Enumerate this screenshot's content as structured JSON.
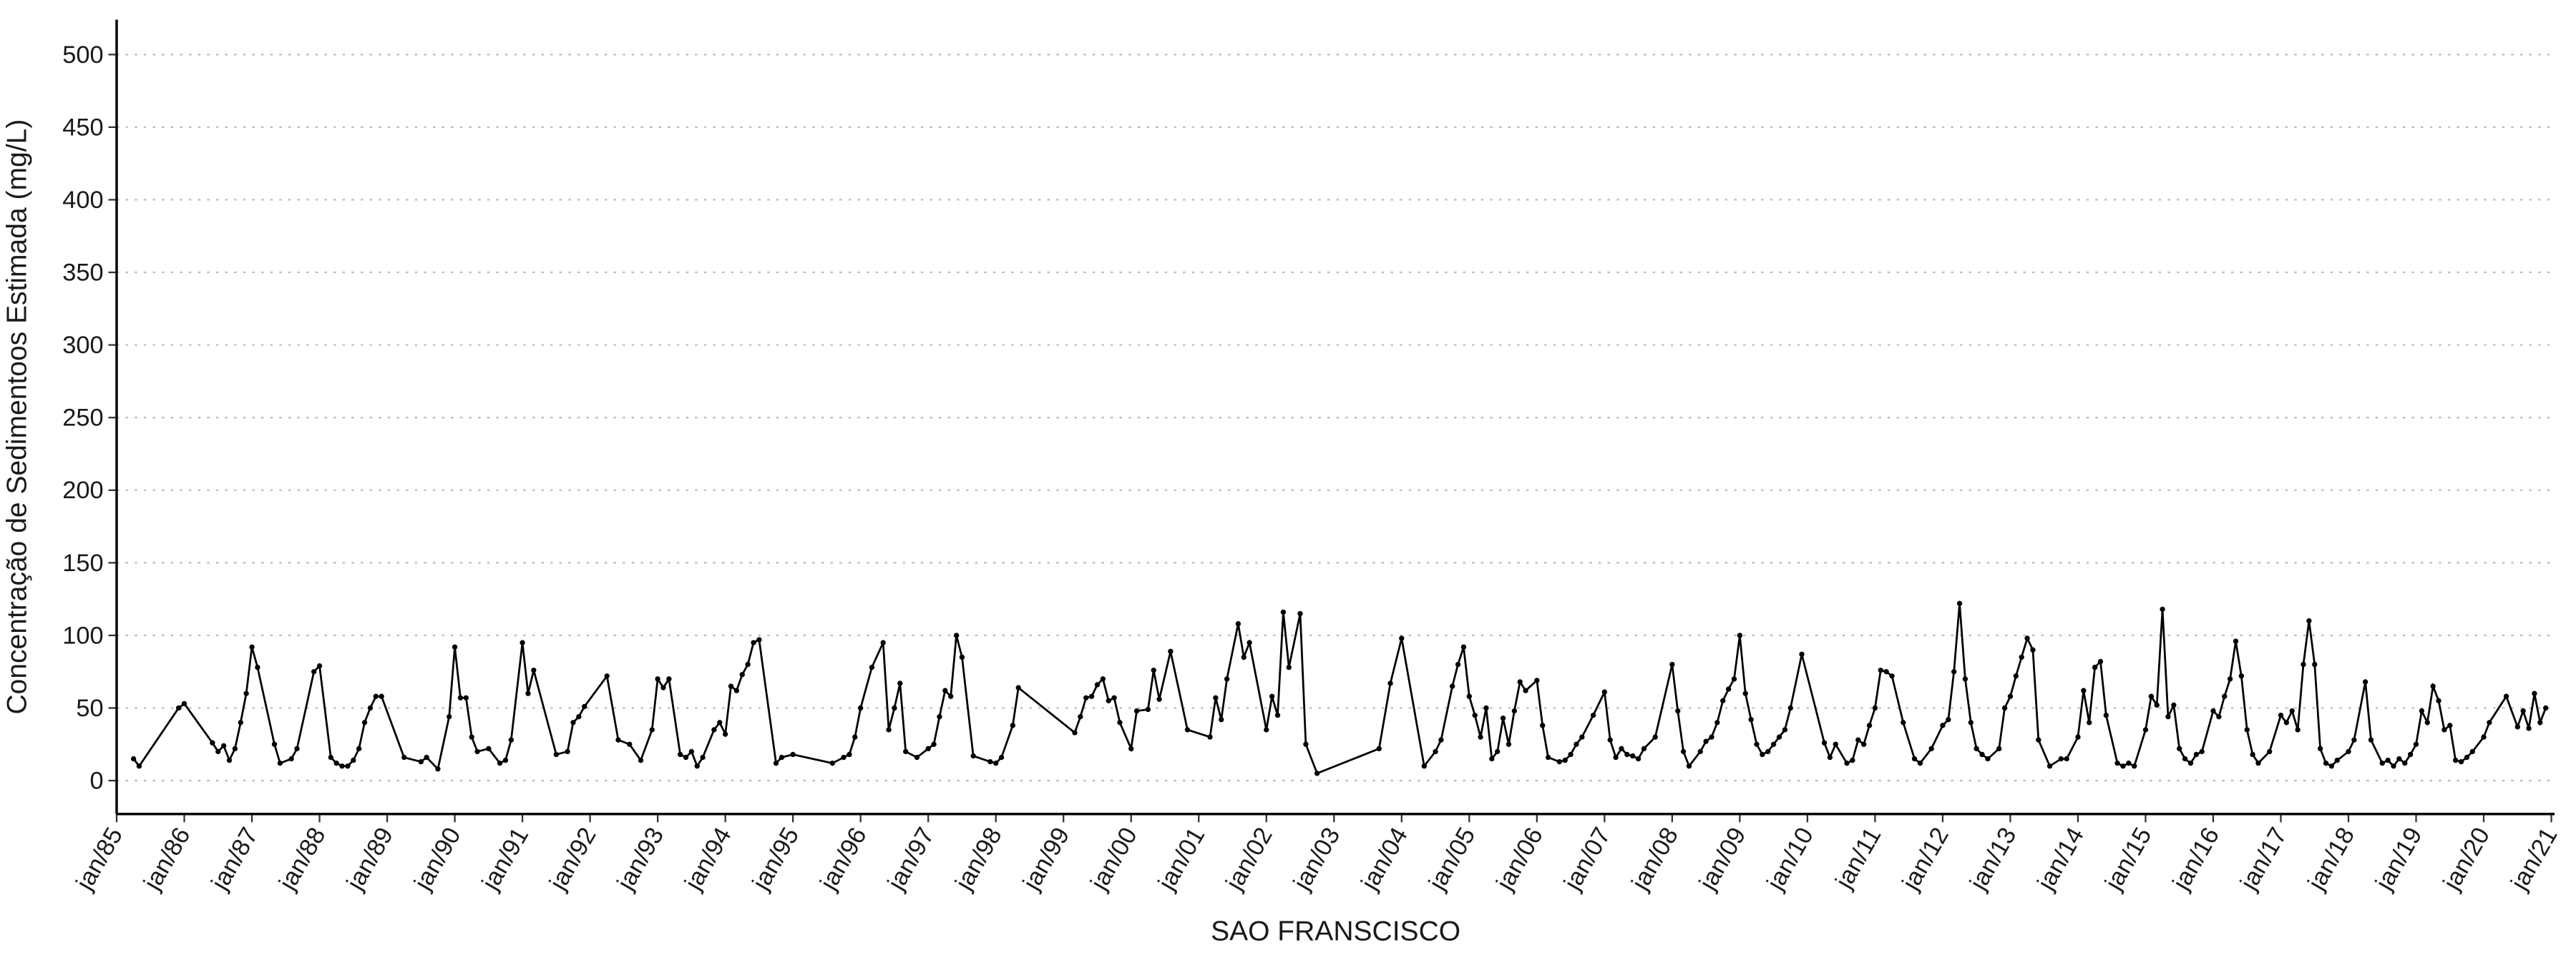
{
  "chart_data": {
    "type": "line",
    "y_label": "Concentração de Sedimentoos Estimada (mg/L)",
    "x_label": "SAO FRANSCISCO",
    "color": "#000000",
    "grid": true,
    "ylim": [
      -23,
      524
    ],
    "yticks": [
      0,
      50,
      100,
      150,
      200,
      250,
      300,
      350,
      400,
      450,
      500
    ],
    "xlim": [
      "1985-01",
      "2021-01"
    ],
    "xticks": [
      {
        "value": "1985-01",
        "label": "jan/85"
      },
      {
        "value": "1986-01",
        "label": "jan/86"
      },
      {
        "value": "1987-01",
        "label": "jan/87"
      },
      {
        "value": "1988-01",
        "label": "jan/88"
      },
      {
        "value": "1989-01",
        "label": "jan/89"
      },
      {
        "value": "1990-01",
        "label": "jan/90"
      },
      {
        "value": "1991-01",
        "label": "jan/91"
      },
      {
        "value": "1992-01",
        "label": "jan/92"
      },
      {
        "value": "1993-01",
        "label": "jan/93"
      },
      {
        "value": "1994-01",
        "label": "jan/94"
      },
      {
        "value": "1995-01",
        "label": "jan/95"
      },
      {
        "value": "1996-01",
        "label": "jan/96"
      },
      {
        "value": "1997-01",
        "label": "jan/97"
      },
      {
        "value": "1998-01",
        "label": "jan/98"
      },
      {
        "value": "1999-01",
        "label": "jan/99"
      },
      {
        "value": "2000-01",
        "label": "jan/00"
      },
      {
        "value": "2001-01",
        "label": "jan/01"
      },
      {
        "value": "2002-01",
        "label": "jan/02"
      },
      {
        "value": "2003-01",
        "label": "jan/03"
      },
      {
        "value": "2004-01",
        "label": "jan/04"
      },
      {
        "value": "2005-01",
        "label": "jan/05"
      },
      {
        "value": "2006-01",
        "label": "jan/06"
      },
      {
        "value": "2007-01",
        "label": "jan/07"
      },
      {
        "value": "2008-01",
        "label": "jan/08"
      },
      {
        "value": "2009-01",
        "label": "jan/09"
      },
      {
        "value": "2010-01",
        "label": "jan/10"
      },
      {
        "value": "2011-01",
        "label": "jan/11"
      },
      {
        "value": "2012-01",
        "label": "jan/12"
      },
      {
        "value": "2013-01",
        "label": "jan/13"
      },
      {
        "value": "2014-01",
        "label": "jan/14"
      },
      {
        "value": "2015-01",
        "label": "jan/15"
      },
      {
        "value": "2016-01",
        "label": "jan/16"
      },
      {
        "value": "2017-01",
        "label": "jan/17"
      },
      {
        "value": "2018-01",
        "label": "jan/18"
      },
      {
        "value": "2019-01",
        "label": "jan/19"
      },
      {
        "value": "2020-01",
        "label": "jan/20"
      },
      {
        "value": "2021-01",
        "label": "jan/21"
      }
    ],
    "x": [
      "1985-04",
      "1985-05",
      "1985-12",
      "1986-01",
      "1986-06",
      "1986-07",
      "1986-08",
      "1986-09",
      "1986-10",
      "1986-11",
      "1986-12",
      "1987-01",
      "1987-02",
      "1987-05",
      "1987-06",
      "1987-08",
      "1987-09",
      "1987-12",
      "1988-01",
      "1988-03",
      "1988-04",
      "1988-05",
      "1988-06",
      "1988-07",
      "1988-08",
      "1988-09",
      "1988-10",
      "1988-11",
      "1988-12",
      "1989-04",
      "1989-07",
      "1989-08",
      "1989-10",
      "1989-12",
      "1990-01",
      "1990-02",
      "1990-03",
      "1990-04",
      "1990-05",
      "1990-07",
      "1990-09",
      "1990-10",
      "1990-11",
      "1991-01",
      "1991-02",
      "1991-03",
      "1991-07",
      "1991-09",
      "1991-10",
      "1991-11",
      "1991-12",
      "1992-04",
      "1992-06",
      "1992-08",
      "1992-10",
      "1992-12",
      "1993-01",
      "1993-02",
      "1993-03",
      "1993-05",
      "1993-06",
      "1993-07",
      "1993-08",
      "1993-09",
      "1993-11",
      "1993-12",
      "1994-01",
      "1994-02",
      "1994-03",
      "1994-04",
      "1994-05",
      "1994-06",
      "1994-07",
      "1994-10",
      "1994-11",
      "1995-01",
      "1995-08",
      "1995-10",
      "1995-11",
      "1995-12",
      "1996-01",
      "1996-03",
      "1996-05",
      "1996-06",
      "1996-07",
      "1996-08",
      "1996-09",
      "1996-11",
      "1997-01",
      "1997-02",
      "1997-03",
      "1997-04",
      "1997-05",
      "1997-06",
      "1997-07",
      "1997-09",
      "1997-12",
      "1998-01",
      "1998-02",
      "1998-04",
      "1998-05",
      "1999-03",
      "1999-04",
      "1999-05",
      "1999-06",
      "1999-07",
      "1999-08",
      "1999-09",
      "1999-10",
      "1999-11",
      "2000-01",
      "2000-02",
      "2000-04",
      "2000-05",
      "2000-06",
      "2000-08",
      "2000-11",
      "2001-03",
      "2001-04",
      "2001-05",
      "2001-06",
      "2001-08",
      "2001-09",
      "2001-10",
      "2002-01",
      "2002-02",
      "2002-03",
      "2002-04",
      "2002-05",
      "2002-07",
      "2002-08",
      "2002-10",
      "2003-09",
      "2003-11",
      "2004-01",
      "2004-05",
      "2004-07",
      "2004-08",
      "2004-10",
      "2004-11",
      "2004-12",
      "2005-01",
      "2005-02",
      "2005-03",
      "2005-04",
      "2005-05",
      "2005-06",
      "2005-07",
      "2005-08",
      "2005-09",
      "2005-10",
      "2005-11",
      "2006-01",
      "2006-02",
      "2006-03",
      "2006-05",
      "2006-06",
      "2006-07",
      "2006-08",
      "2006-09",
      "2006-11",
      "2007-01",
      "2007-02",
      "2007-03",
      "2007-04",
      "2007-05",
      "2007-06",
      "2007-07",
      "2007-08",
      "2007-10",
      "2008-01",
      "2008-02",
      "2008-03",
      "2008-04",
      "2008-06",
      "2008-07",
      "2008-08",
      "2008-09",
      "2008-10",
      "2008-11",
      "2008-12",
      "2009-01",
      "2009-02",
      "2009-03",
      "2009-04",
      "2009-05",
      "2009-06",
      "2009-07",
      "2009-08",
      "2009-09",
      "2009-10",
      "2009-12",
      "2010-04",
      "2010-05",
      "2010-06",
      "2010-08",
      "2010-09",
      "2010-10",
      "2010-11",
      "2010-12",
      "2011-01",
      "2011-02",
      "2011-03",
      "2011-04",
      "2011-06",
      "2011-08",
      "2011-09",
      "2011-11",
      "2012-01",
      "2012-02",
      "2012-03",
      "2012-04",
      "2012-05",
      "2012-06",
      "2012-07",
      "2012-08",
      "2012-09",
      "2012-11",
      "2012-12",
      "2013-01",
      "2013-02",
      "2013-03",
      "2013-04",
      "2013-05",
      "2013-06",
      "2013-08",
      "2013-10",
      "2013-11",
      "2014-01",
      "2014-02",
      "2014-03",
      "2014-04",
      "2014-05",
      "2014-06",
      "2014-08",
      "2014-09",
      "2014-10",
      "2014-11",
      "2015-01",
      "2015-02",
      "2015-03",
      "2015-04",
      "2015-05",
      "2015-06",
      "2015-07",
      "2015-08",
      "2015-09",
      "2015-10",
      "2015-11",
      "2016-01",
      "2016-02",
      "2016-03",
      "2016-04",
      "2016-05",
      "2016-06",
      "2016-07",
      "2016-08",
      "2016-09",
      "2016-11",
      "2017-01",
      "2017-02",
      "2017-03",
      "2017-04",
      "2017-05",
      "2017-06",
      "2017-07",
      "2017-08",
      "2017-09",
      "2017-10",
      "2017-11",
      "2018-01",
      "2018-02",
      "2018-04",
      "2018-05",
      "2018-07",
      "2018-08",
      "2018-09",
      "2018-10",
      "2018-11",
      "2018-12",
      "2019-01",
      "2019-02",
      "2019-03",
      "2019-04",
      "2019-05",
      "2019-06",
      "2019-07",
      "2019-08",
      "2019-09",
      "2019-10",
      "2019-11",
      "2020-01",
      "2020-02",
      "2020-05",
      "2020-07",
      "2020-08",
      "2020-09",
      "2020-10",
      "2020-11",
      "2020-12"
    ],
    "values": [
      15,
      10,
      50,
      53,
      26,
      20,
      24,
      14,
      22,
      40,
      60,
      92,
      78,
      25,
      12,
      15,
      22,
      75,
      79,
      16,
      12,
      10,
      10,
      14,
      22,
      40,
      50,
      58,
      58,
      16,
      13,
      16,
      8,
      44,
      92,
      57,
      57,
      30,
      20,
      22,
      12,
      14,
      28,
      95,
      60,
      76,
      18,
      20,
      40,
      44,
      51,
      72,
      28,
      25,
      14,
      35,
      70,
      64,
      70,
      18,
      16,
      20,
      10,
      16,
      35,
      40,
      32,
      65,
      62,
      73,
      80,
      95,
      97,
      12,
      16,
      18,
      12,
      16,
      18,
      30,
      50,
      78,
      95,
      35,
      50,
      67,
      20,
      16,
      22,
      25,
      44,
      62,
      58,
      100,
      85,
      17,
      13,
      12,
      16,
      38,
      64,
      33,
      44,
      57,
      58,
      66,
      70,
      55,
      57,
      40,
      22,
      48,
      49,
      76,
      56,
      89,
      35,
      30,
      57,
      42,
      70,
      108,
      85,
      95,
      35,
      58,
      45,
      116,
      78,
      115,
      25,
      5,
      22,
      67,
      98,
      10,
      20,
      28,
      65,
      80,
      92,
      58,
      45,
      30,
      50,
      15,
      20,
      43,
      25,
      48,
      68,
      62,
      69,
      38,
      16,
      13,
      14,
      18,
      25,
      30,
      45,
      61,
      28,
      16,
      22,
      18,
      17,
      15,
      22,
      30,
      80,
      48,
      20,
      10,
      20,
      27,
      30,
      40,
      55,
      63,
      70,
      100,
      60,
      42,
      25,
      18,
      20,
      25,
      30,
      35,
      50,
      87,
      26,
      16,
      25,
      12,
      14,
      28,
      25,
      38,
      50,
      76,
      75,
      72,
      40,
      15,
      12,
      22,
      38,
      42,
      75,
      122,
      70,
      40,
      22,
      18,
      15,
      22,
      50,
      58,
      72,
      85,
      98,
      90,
      28,
      10,
      15,
      15,
      30,
      62,
      40,
      78,
      82,
      45,
      12,
      10,
      12,
      10,
      35,
      58,
      52,
      118,
      44,
      52,
      22,
      15,
      12,
      18,
      20,
      48,
      44,
      58,
      70,
      96,
      72,
      35,
      18,
      12,
      20,
      45,
      40,
      48,
      35,
      80,
      110,
      80,
      22,
      12,
      10,
      14,
      20,
      28,
      68,
      28,
      12,
      14,
      10,
      15,
      12,
      18,
      25,
      48,
      40,
      65,
      55,
      35,
      38,
      14,
      13,
      16,
      20,
      30,
      40,
      58,
      37,
      48,
      36,
      60,
      40,
      50
    ]
  }
}
